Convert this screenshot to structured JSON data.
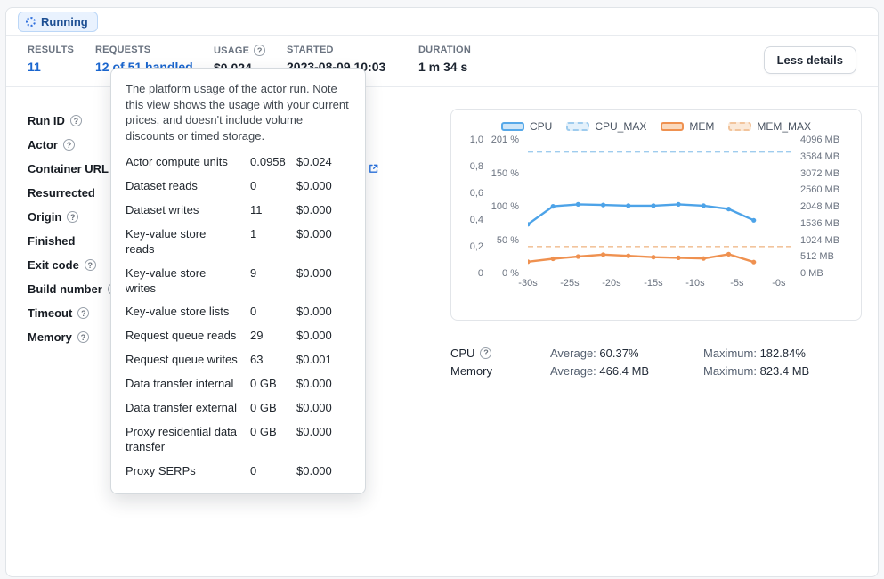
{
  "status": {
    "label": "Running"
  },
  "icons": {
    "question": "?"
  },
  "stats": {
    "results": {
      "label": "RESULTS",
      "value": "11"
    },
    "requests": {
      "label": "REQUESTS",
      "value": "12 of 51 handled"
    },
    "usage": {
      "label": "USAGE",
      "value": "$0.024"
    },
    "started": {
      "label": "STARTED",
      "value": "2023-08-09 10:03"
    },
    "duration": {
      "label": "DURATION",
      "value": "1 m 34 s"
    },
    "less_details": "Less details"
  },
  "details": {
    "rows": [
      {
        "label": "Run ID",
        "help": true
      },
      {
        "label": "Actor",
        "help": true
      },
      {
        "label": "Container URL",
        "help": true,
        "external": true
      },
      {
        "label": "Resurrected",
        "help": false
      },
      {
        "label": "Origin",
        "help": true
      },
      {
        "label": "Finished",
        "help": false
      },
      {
        "label": "Exit code",
        "help": true
      },
      {
        "label": "Build number",
        "help": true
      },
      {
        "label": "Timeout",
        "help": true
      },
      {
        "label": "Memory",
        "help": true
      }
    ]
  },
  "tooltip": {
    "description": "The platform usage of the actor run. Note this view shows the usage with your current prices, and doesn't include volume discounts or timed storage.",
    "rows": [
      {
        "label": "Actor compute units",
        "qty": "0.0958",
        "price": "$0.024"
      },
      {
        "label": "Dataset reads",
        "qty": "0",
        "price": "$0.000"
      },
      {
        "label": "Dataset writes",
        "qty": "11",
        "price": "$0.000"
      },
      {
        "label": "Key-value store reads",
        "qty": "1",
        "price": "$0.000"
      },
      {
        "label": "Key-value store writes",
        "qty": "9",
        "price": "$0.000"
      },
      {
        "label": "Key-value store lists",
        "qty": "0",
        "price": "$0.000"
      },
      {
        "label": "Request queue reads",
        "qty": "29",
        "price": "$0.000"
      },
      {
        "label": "Request queue writes",
        "qty": "63",
        "price": "$0.001"
      },
      {
        "label": "Data transfer internal",
        "qty": "0 GB",
        "price": "$0.000"
      },
      {
        "label": "Data transfer external",
        "qty": "0 GB",
        "price": "$0.000"
      },
      {
        "label": "Proxy residential data transfer",
        "qty": "0 GB",
        "price": "$0.000"
      },
      {
        "label": "Proxy SERPs",
        "qty": "0",
        "price": "$0.000"
      }
    ]
  },
  "chart_data": {
    "type": "line",
    "x": [
      -30,
      -27,
      -24,
      -21,
      -18,
      -15,
      -12,
      -9,
      -6,
      -3
    ],
    "x_range": [
      -30,
      1.5
    ],
    "x_ticks": [
      "-30s",
      "-25s",
      "-20s",
      "-15s",
      "-10s",
      "-5s",
      "-0s"
    ],
    "x_tick_values": [
      -30,
      -25,
      -20,
      -15,
      -10,
      -5,
      0
    ],
    "left_axis_units": [
      "1,0",
      "0,8",
      "0,6",
      "0,4",
      "0,2",
      "0"
    ],
    "left_axis_pct": [
      {
        "label": "201 %",
        "value": 201
      },
      {
        "label": "150 %",
        "value": 150
      },
      {
        "label": "100 %",
        "value": 100
      },
      {
        "label": "50 %",
        "value": 50
      },
      {
        "label": "0 %",
        "value": 0
      }
    ],
    "right_axis_mb": [
      "4096 MB",
      "3584 MB",
      "3072 MB",
      "2560 MB",
      "2048 MB",
      "1536 MB",
      "1024 MB",
      "512 MB",
      "0 MB"
    ],
    "pct_max": 201,
    "mb_max": 4096,
    "series": [
      {
        "name": "CPU",
        "unit": "%",
        "style": "solid",
        "color": "#4da3e8",
        "values": [
          74,
          101,
          104,
          103,
          102,
          102,
          104,
          102,
          97,
          80
        ]
      },
      {
        "name": "CPU_MAX",
        "unit": "%",
        "style": "dashed",
        "color": "#9fccee",
        "value": 182.84
      },
      {
        "name": "MEM",
        "unit": "MB",
        "style": "solid",
        "color": "#ef9150",
        "values": [
          360,
          450,
          520,
          580,
          540,
          500,
          480,
          460,
          590,
          350
        ]
      },
      {
        "name": "MEM_MAX",
        "unit": "MB",
        "style": "dashed",
        "color": "#f2c49c",
        "value": 823.4
      }
    ]
  },
  "chart_stats": {
    "rows": [
      {
        "label": "CPU",
        "help": true,
        "avg_label": "Average:",
        "avg": "60.37%",
        "max_label": "Maximum:",
        "max": "182.84%"
      },
      {
        "label": "Memory",
        "help": false,
        "avg_label": "Average:",
        "avg": "466.4 MB",
        "max_label": "Maximum:",
        "max": "823.4 MB"
      }
    ]
  }
}
